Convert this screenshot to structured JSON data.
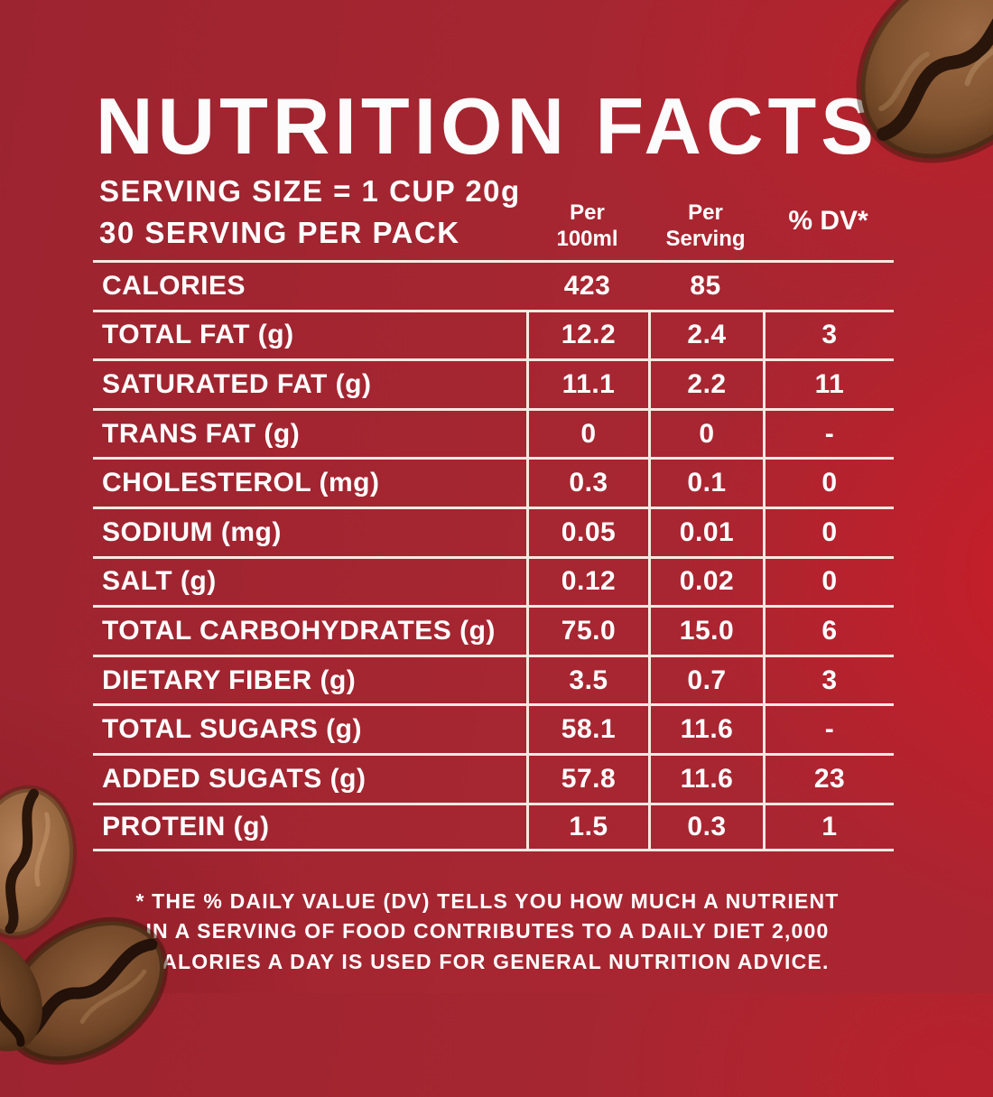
{
  "title": "NUTRITION FACTS",
  "serving": {
    "line1": "SERVING SIZE = 1 CUP 20g",
    "line2": "30 SERVING PER PACK"
  },
  "columns": {
    "per_100ml": {
      "line1": "Per",
      "line2": "100ml"
    },
    "per_serving": {
      "line1": "Per",
      "line2": "Serving"
    },
    "dv": "% DV*"
  },
  "rows": [
    {
      "label": "CALORIES",
      "per_100ml": "423",
      "per_serving": "85",
      "dv": ""
    },
    {
      "label": "TOTAL FAT (g)",
      "per_100ml": "12.2",
      "per_serving": "2.4",
      "dv": "3"
    },
    {
      "label": "SATURATED FAT (g)",
      "per_100ml": "11.1",
      "per_serving": "2.2",
      "dv": "11"
    },
    {
      "label": "TRANS FAT (g)",
      "per_100ml": "0",
      "per_serving": "0",
      "dv": "-"
    },
    {
      "label": "CHOLESTEROL (mg)",
      "per_100ml": "0.3",
      "per_serving": "0.1",
      "dv": "0"
    },
    {
      "label": "SODIUM (mg)",
      "per_100ml": "0.05",
      "per_serving": "0.01",
      "dv": "0"
    },
    {
      "label": "SALT (g)",
      "per_100ml": "0.12",
      "per_serving": "0.02",
      "dv": "0"
    },
    {
      "label": "TOTAL CARBOHYDRATES (g)",
      "per_100ml": "75.0",
      "per_serving": "15.0",
      "dv": "6"
    },
    {
      "label": "DIETARY FIBER (g)",
      "per_100ml": "3.5",
      "per_serving": "0.7",
      "dv": "3"
    },
    {
      "label": "TOTAL SUGARS (g)",
      "per_100ml": "58.1",
      "per_serving": "11.6",
      "dv": "-"
    },
    {
      "label": "ADDED SUGATS (g)",
      "per_100ml": "57.8",
      "per_serving": "11.6",
      "dv": "23"
    },
    {
      "label": "PROTEIN (g)",
      "per_100ml": "1.5",
      "per_serving": "0.3",
      "dv": "1"
    }
  ],
  "footnote": {
    "line1": "* THE % DAILY VALUE (DV) TELLS YOU HOW MUCH A NUTRIENT",
    "line2": "IN A SERVING OF FOOD CONTRIBUTES TO A DAILY DIET 2,000",
    "line3": "CALORIES A DAY IS USED FOR GENERAL NUTRITION ADVICE."
  },
  "colors": {
    "background": "#a62631",
    "background-bright": "#d61a24",
    "line": "#f5e9e2",
    "text": "#ffffff",
    "bean-light": "#a97952",
    "bean-mid": "#8a5a38",
    "bean-dark": "#4f2f1b",
    "bean-crease": "#2a150b"
  },
  "decorations": {
    "beans": [
      "coffee-bean-top-right",
      "coffee-bean-bottom-left-upper",
      "coffee-bean-bottom-left-lower",
      "coffee-bean-bottom-corner"
    ]
  }
}
